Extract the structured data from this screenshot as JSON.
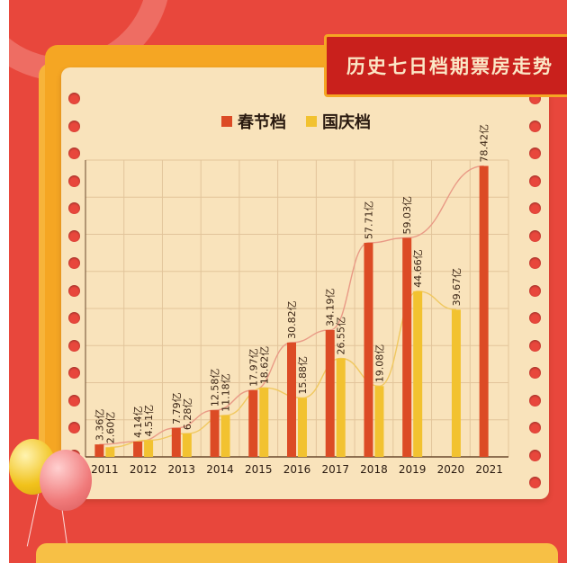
{
  "header": {
    "title": "历史七日档期票房走势"
  },
  "colors": {
    "spring_festival": "#dc4b25",
    "national_day": "#f2c230",
    "line": "#e99a86",
    "grid": "#e2c49a",
    "text": "#3a2414"
  },
  "chart_data": {
    "type": "bar",
    "title": "历史七日档期票房走势",
    "xlabel": "",
    "ylabel": "",
    "categories": [
      "2011",
      "2012",
      "2013",
      "2014",
      "2015",
      "2016",
      "2017",
      "2018",
      "2019",
      "2020",
      "2021"
    ],
    "series": [
      {
        "name": "春节档",
        "values": [
          3.36,
          4.14,
          7.79,
          12.58,
          17.97,
          30.82,
          34.19,
          57.71,
          59.03,
          null,
          78.42
        ],
        "labels": [
          "3.36亿",
          "4.14亿",
          "7.79亿",
          "12.58亿",
          "17.97亿",
          "30.82亿",
          "34.19亿",
          "57.71亿",
          "59.03亿",
          "",
          "78.42亿"
        ]
      },
      {
        "name": "国庆档",
        "values": [
          2.6,
          4.51,
          6.28,
          11.18,
          18.62,
          15.88,
          26.55,
          19.08,
          44.66,
          39.67,
          null
        ],
        "labels": [
          "2.60亿",
          "4.51亿",
          "6.28亿",
          "11.18亿",
          "18.62亿",
          "15.88亿",
          "26.55亿",
          "19.08亿",
          "44.66亿",
          "39.67亿",
          ""
        ]
      }
    ],
    "ylim": [
      0,
      80
    ],
    "grid": true,
    "legend_position": "top-center",
    "trend_lines": true
  }
}
